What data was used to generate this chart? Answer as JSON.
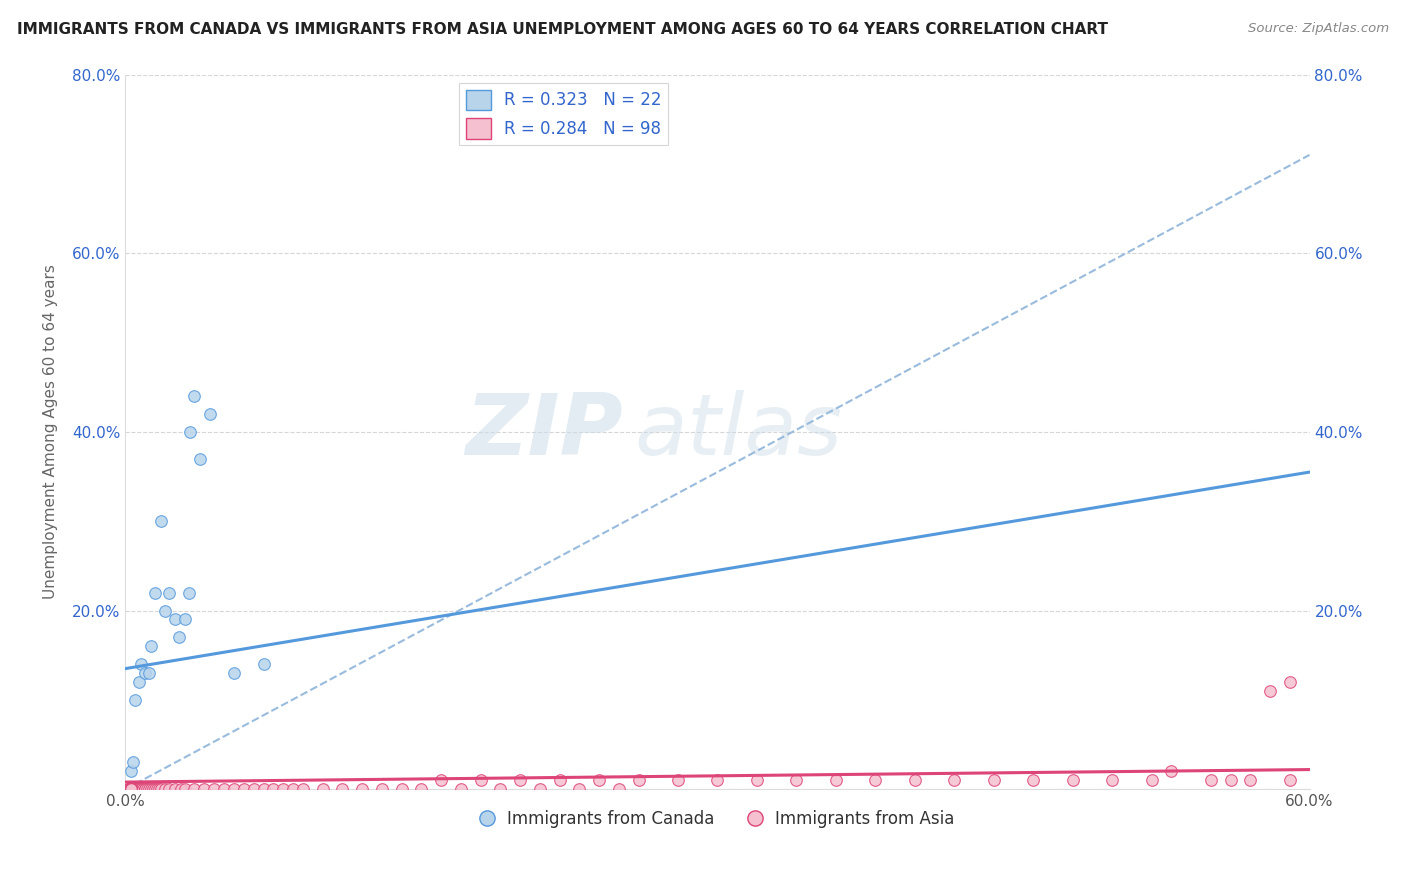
{
  "title": "IMMIGRANTS FROM CANADA VS IMMIGRANTS FROM ASIA UNEMPLOYMENT AMONG AGES 60 TO 64 YEARS CORRELATION CHART",
  "source": "Source: ZipAtlas.com",
  "ylabel": "Unemployment Among Ages 60 to 64 years",
  "watermark_zip": "ZIP",
  "watermark_atlas": "atlas",
  "xlim": [
    0.0,
    0.6
  ],
  "ylim": [
    0.0,
    0.8
  ],
  "canada_R": 0.323,
  "canada_N": 22,
  "asia_R": 0.284,
  "asia_N": 98,
  "canada_color": "#b8d4ea",
  "asia_color": "#f5c0d0",
  "canada_line_color": "#5599dd",
  "asia_line_color": "#dd4477",
  "trend_dashed_color": "#99bbdd",
  "background_color": "#ffffff",
  "grid_color": "#cccccc",
  "legend_text_color": "#3366cc",
  "canada_line_x0": 0.0,
  "canada_line_y0": 0.135,
  "canada_line_x1": 0.6,
  "canada_line_y1": 0.355,
  "asia_line_x0": 0.0,
  "asia_line_y0": 0.008,
  "asia_line_x1": 0.6,
  "asia_line_y1": 0.022,
  "dashed_line_x0": 0.0,
  "dashed_line_y0": 0.0,
  "dashed_line_x1": 0.6,
  "dashed_line_y1": 0.71,
  "canada_scatter_x": [
    0.003,
    0.004,
    0.005,
    0.007,
    0.008,
    0.01,
    0.012,
    0.013,
    0.015,
    0.018,
    0.02,
    0.022,
    0.025,
    0.027,
    0.03,
    0.032,
    0.033,
    0.035,
    0.038,
    0.043,
    0.055,
    0.07
  ],
  "canada_scatter_y": [
    0.02,
    0.03,
    0.1,
    0.12,
    0.14,
    0.13,
    0.13,
    0.16,
    0.22,
    0.3,
    0.2,
    0.22,
    0.19,
    0.17,
    0.19,
    0.22,
    0.4,
    0.44,
    0.37,
    0.42,
    0.13,
    0.14
  ],
  "asia_scatter_x": [
    0.002,
    0.003,
    0.003,
    0.004,
    0.004,
    0.005,
    0.005,
    0.006,
    0.006,
    0.007,
    0.008,
    0.008,
    0.009,
    0.01,
    0.01,
    0.011,
    0.012,
    0.013,
    0.014,
    0.015,
    0.016,
    0.017,
    0.018,
    0.02,
    0.022,
    0.025,
    0.028,
    0.03,
    0.035,
    0.04,
    0.045,
    0.05,
    0.055,
    0.06,
    0.065,
    0.07,
    0.075,
    0.08,
    0.085,
    0.09,
    0.1,
    0.11,
    0.12,
    0.13,
    0.14,
    0.15,
    0.16,
    0.17,
    0.18,
    0.19,
    0.2,
    0.21,
    0.22,
    0.23,
    0.24,
    0.25,
    0.26,
    0.28,
    0.3,
    0.32,
    0.34,
    0.36,
    0.38,
    0.4,
    0.42,
    0.44,
    0.46,
    0.48,
    0.5,
    0.52,
    0.53,
    0.55,
    0.56,
    0.57,
    0.58,
    0.59,
    0.59,
    0.002,
    0.002,
    0.002,
    0.002,
    0.002,
    0.002,
    0.002,
    0.003,
    0.003,
    0.003,
    0.003,
    0.003,
    0.003,
    0.003,
    0.003,
    0.003,
    0.003,
    0.003,
    0.003,
    0.003,
    0.003
  ],
  "asia_scatter_y": [
    0.0,
    0.0,
    0.0,
    0.0,
    0.0,
    0.0,
    0.0,
    0.0,
    0.0,
    0.0,
    0.0,
    0.0,
    0.0,
    0.0,
    0.0,
    0.0,
    0.0,
    0.0,
    0.0,
    0.0,
    0.0,
    0.0,
    0.0,
    0.0,
    0.0,
    0.0,
    0.0,
    0.0,
    0.0,
    0.0,
    0.0,
    0.0,
    0.0,
    0.0,
    0.0,
    0.0,
    0.0,
    0.0,
    0.0,
    0.0,
    0.0,
    0.0,
    0.0,
    0.0,
    0.0,
    0.0,
    0.01,
    0.0,
    0.01,
    0.0,
    0.01,
    0.0,
    0.01,
    0.0,
    0.01,
    0.0,
    0.01,
    0.01,
    0.01,
    0.01,
    0.01,
    0.01,
    0.01,
    0.01,
    0.01,
    0.01,
    0.01,
    0.01,
    0.01,
    0.01,
    0.02,
    0.01,
    0.01,
    0.01,
    0.11,
    0.01,
    0.12,
    0.0,
    0.0,
    0.0,
    0.0,
    0.0,
    0.0,
    0.0,
    0.0,
    0.0,
    0.0,
    0.0,
    0.0,
    0.0,
    0.0,
    0.0,
    0.0,
    0.0,
    0.0,
    0.0,
    0.0,
    0.0
  ]
}
